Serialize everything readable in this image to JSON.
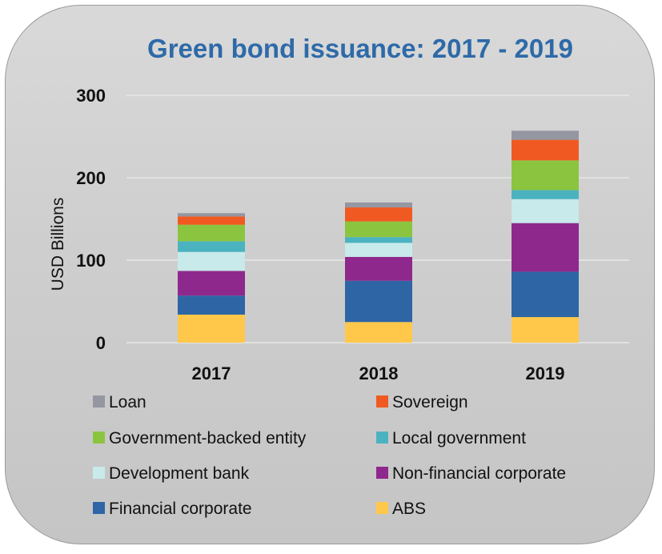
{
  "chart_data": {
    "type": "bar",
    "stacked": true,
    "title": "Green bond issuance: 2017 - 2019",
    "xlabel": "",
    "ylabel": "USD Billions",
    "ylim": [
      0,
      300
    ],
    "yticks": [
      "0",
      "100",
      "200",
      "300"
    ],
    "ytick_values": [
      0,
      100,
      200,
      300
    ],
    "grid": true,
    "legend_position": "bottom",
    "categories": [
      "2017",
      "2018",
      "2019"
    ],
    "series": [
      {
        "name": "ABS",
        "color": "#ffc84a",
        "values": [
          34,
          25,
          31
        ]
      },
      {
        "name": "Financial corporate",
        "color": "#2e65a5",
        "values": [
          23,
          50,
          55
        ]
      },
      {
        "name": "Non-financial corporate",
        "color": "#8e288c",
        "values": [
          30,
          29,
          59
        ]
      },
      {
        "name": "Development bank",
        "color": "#c8eaea",
        "values": [
          23,
          17,
          29
        ]
      },
      {
        "name": "Local government",
        "color": "#4bb3c0",
        "values": [
          13,
          7,
          11
        ]
      },
      {
        "name": "Government-backed entity",
        "color": "#8bc53f",
        "values": [
          20,
          19,
          36
        ]
      },
      {
        "name": "Sovereign",
        "color": "#f05a22",
        "values": [
          10,
          17,
          25
        ]
      },
      {
        "name": "Loan",
        "color": "#9496a1",
        "values": [
          4,
          6,
          11
        ]
      }
    ],
    "legend_order": [
      "Loan",
      "Sovereign",
      "Government-backed entity",
      "Local government",
      "Development bank",
      "Non-financial corporate",
      "Financial corporate",
      "ABS"
    ]
  }
}
